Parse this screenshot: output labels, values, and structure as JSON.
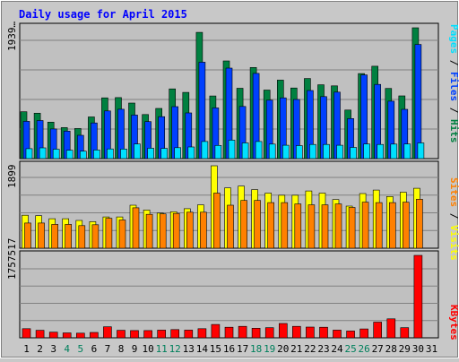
{
  "chart_data": {
    "type": "bar",
    "title": "Daily usage for April 2015",
    "days": [
      "1",
      "2",
      "3",
      "4",
      "5",
      "6",
      "7",
      "8",
      "9",
      "10",
      "11",
      "12",
      "13",
      "14",
      "15",
      "16",
      "17",
      "18",
      "19",
      "20",
      "21",
      "22",
      "23",
      "24",
      "25",
      "26",
      "27",
      "28",
      "29",
      "30",
      "31"
    ],
    "weekend_days": [
      "4",
      "5",
      "11",
      "12",
      "18",
      "19",
      "25",
      "26"
    ],
    "panels": [
      {
        "key": "hits",
        "max_label": "1939…",
        "legend": [
          {
            "text": "Pages",
            "color": "#00e0ff"
          },
          {
            "text": "Files",
            "color": "#0040ff"
          },
          {
            "text": "Hits",
            "color": "#008040"
          }
        ],
        "series": [
          {
            "name": "Hits",
            "color": "#008040",
            "values": [
              6950,
              6730,
              5410,
              4590,
              4460,
              6180,
              9000,
              9040,
              8240,
              6530,
              7440,
              10340,
              9820,
              18710,
              9290,
              14480,
              10420,
              13510,
              10160,
              11640,
              10460,
              11880,
              10940,
              10780,
              7200,
              12600,
              13700,
              10400,
              9300,
              19392,
              0
            ]
          },
          {
            "name": "Files",
            "color": "#0040ff",
            "values": [
              5520,
              5640,
              4390,
              4080,
              3460,
              5280,
              7060,
              7320,
              6450,
              5490,
              6210,
              7700,
              6770,
              14290,
              7520,
              13410,
              7730,
              12630,
              8660,
              9000,
              8770,
              10090,
              9190,
              9850,
              5940,
              12400,
              11000,
              8520,
              7300,
              16920,
              0
            ]
          },
          {
            "name": "Pages",
            "color": "#00e0ff",
            "values": [
              1470,
              1590,
              1390,
              1230,
              1100,
              1280,
              1440,
              1420,
              2170,
              1540,
              1520,
              1620,
              1730,
              2540,
              1950,
              2730,
              2320,
              2540,
              2150,
              1980,
              1930,
              2100,
              2100,
              1980,
              1660,
              2170,
              2100,
              2150,
              2170,
              2320,
              0
            ]
          }
        ]
      },
      {
        "key": "visits",
        "max_label": "1899",
        "legend": [
          {
            "text": "Sites",
            "color": "#ff8000"
          },
          {
            "text": "Visits",
            "color": "#ffff00"
          }
        ],
        "series": [
          {
            "name": "Visits",
            "color": "#ffff00",
            "values": [
              760,
              750,
              680,
              680,
              640,
              610,
              720,
              720,
              990,
              880,
              810,
              840,
              910,
              1000,
              1899,
              1390,
              1430,
              1350,
              1270,
              1220,
              1220,
              1320,
              1270,
              1120,
              970,
              1260,
              1340,
              1190,
              1290,
              1380,
              0
            ]
          },
          {
            "name": "Sites",
            "color": "#ff8000",
            "values": [
              580,
              580,
              550,
              550,
              520,
              540,
              690,
              650,
              930,
              780,
              790,
              800,
              830,
              830,
              1270,
              990,
              1100,
              1100,
              1050,
              1050,
              1020,
              1000,
              1000,
              1020,
              940,
              1060,
              1050,
              1050,
              1060,
              1130,
              0
            ]
          }
        ]
      },
      {
        "key": "kbytes",
        "max_label": "1757517",
        "legend": [
          {
            "text": "KBytes",
            "color": "#ff0000"
          }
        ],
        "series": [
          {
            "name": "KBytes",
            "color": "#ff0000",
            "values": [
              195000,
              160000,
              120000,
              105000,
              100000,
              115000,
              235000,
              160000,
              155000,
              155000,
              165000,
              175000,
              165000,
              195000,
              285000,
              225000,
              245000,
              205000,
              215000,
              305000,
              245000,
              230000,
              225000,
              165000,
              145000,
              190000,
              335000,
              405000,
              215000,
              1757517,
              0
            ]
          }
        ]
      }
    ]
  }
}
